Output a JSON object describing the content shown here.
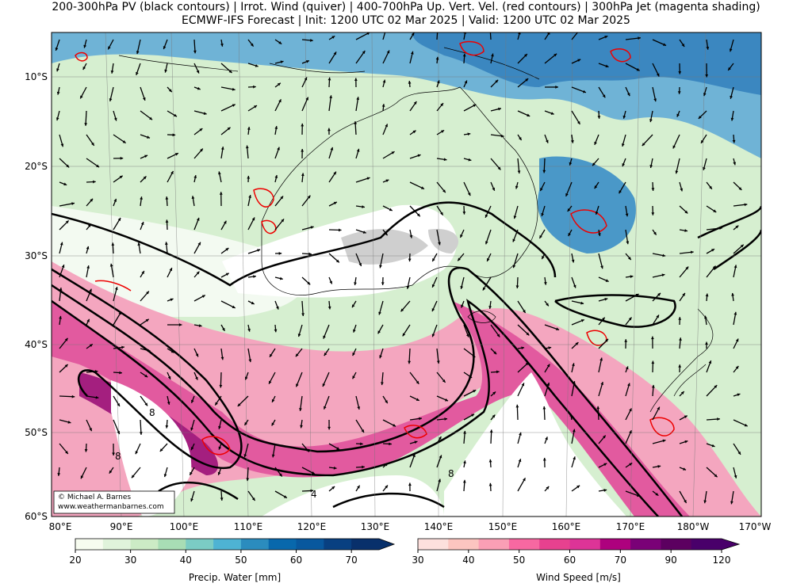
{
  "header": {
    "title_line1": "200-300hPa PV (black contours) | Irrot. Wind (quiver) | 400-700hPa Up. Vert. Vel. (red contours) | 300hPa Jet (magenta shading)",
    "title_line2": "ECMWF-IFS Forecast | Init: 1200 UTC 02 Mar 2025 | Valid: 1200 UTC 02 Mar 2025"
  },
  "map": {
    "lat_labels": [
      "10°S",
      "20°S",
      "30°S",
      "40°S",
      "50°S",
      "60°S"
    ],
    "lon_labels": [
      "80°E",
      "90°E",
      "100°E",
      "110°E",
      "120°E",
      "130°E",
      "140°E",
      "150°E",
      "160°E",
      "170°E",
      "180°W",
      "170°W"
    ],
    "contour_labels": [
      "8",
      "8",
      "4",
      "8"
    ],
    "credit": [
      "© Michael A. Barnes",
      "www.weathermanbarnes.com"
    ]
  },
  "colorbars": [
    {
      "label": "Precip. Water [mm]",
      "ticks": [
        20,
        30,
        40,
        50,
        60,
        70
      ]
    },
    {
      "label": "Wind Speed [m/s]",
      "ticks": [
        30,
        40,
        50,
        60,
        70,
        90,
        120
      ]
    }
  ]
}
